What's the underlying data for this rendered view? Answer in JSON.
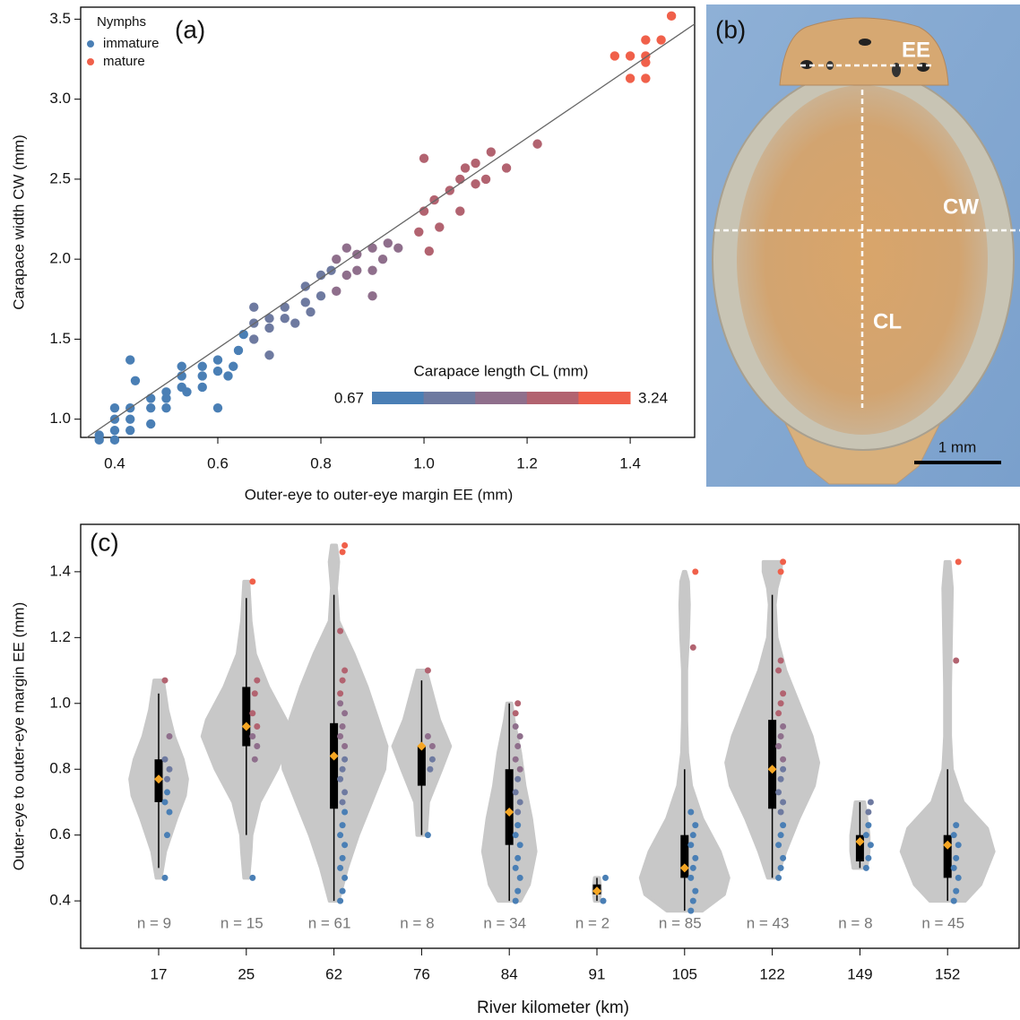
{
  "chart_data": [
    {
      "type": "scatter",
      "panel_label": "(a)",
      "xlabel": "Outer-eye to outer-eye margin EE (mm)",
      "ylabel": "Carapace width CW (mm)",
      "xlim": [
        0.334,
        1.525
      ],
      "xticks": [
        0.4,
        0.6,
        0.8,
        {
          "value": 1,
          "label": "1.0"
        },
        1.2,
        1.4
      ],
      "ylim": [
        0.886,
        3.575
      ],
      "yticks": [
        {
          "value": 1,
          "label": "1.0"
        },
        1.5,
        {
          "value": 2,
          "label": "2.0"
        },
        2.5,
        {
          "value": 3,
          "label": "3.0"
        },
        3.5
      ],
      "legend_title": "Nymphs",
      "legend": [
        {
          "name": "immature",
          "color": "#4a7fb5"
        },
        {
          "name": "mature",
          "color": "#f0604a"
        }
      ],
      "colorbar": {
        "title": "Carapace length CL (mm)",
        "min": 0.67,
        "max": 3.24,
        "colors": [
          "#4a7fb5",
          "#6e7aa0",
          "#8f6f8c",
          "#b26370",
          "#f0604a"
        ]
      },
      "fit_line": {
        "x": [
          0.346,
          1.525
        ],
        "y": [
          0.886,
          3.47
        ],
        "color": "#666666"
      },
      "series": [
        {
          "color": "#4a7fb5",
          "x": [
            0.37,
            0.37,
            0.4,
            0.4,
            0.4,
            0.4,
            0.43,
            0.43,
            0.43,
            0.43,
            0.44,
            0.47,
            0.47,
            0.47,
            0.5,
            0.5,
            0.5,
            0.53,
            0.53,
            0.53,
            0.54,
            0.57,
            0.57,
            0.57,
            0.6,
            0.6,
            0.6,
            0.62,
            0.63,
            0.64,
            0.65
          ],
          "y": [
            0.87,
            0.9,
            0.87,
            0.93,
            1.0,
            1.07,
            0.93,
            1.0,
            1.07,
            1.37,
            1.24,
            0.97,
            1.07,
            1.13,
            1.07,
            1.13,
            1.17,
            1.2,
            1.27,
            1.33,
            1.17,
            1.2,
            1.27,
            1.33,
            1.07,
            1.3,
            1.37,
            1.27,
            1.33,
            1.43,
            1.53
          ]
        },
        {
          "color": "#6e7aa0",
          "x": [
            0.67,
            0.67,
            0.67,
            0.7,
            0.7,
            0.7,
            0.73,
            0.73,
            0.75,
            0.77,
            0.77,
            0.78,
            0.8,
            0.8,
            0.82
          ],
          "y": [
            1.5,
            1.6,
            1.7,
            1.4,
            1.57,
            1.63,
            1.63,
            1.7,
            1.6,
            1.73,
            1.83,
            1.67,
            1.77,
            1.9,
            1.93
          ]
        },
        {
          "color": "#8f6f8c",
          "x": [
            0.83,
            0.83,
            0.85,
            0.85,
            0.87,
            0.87,
            0.9,
            0.9,
            0.9,
            0.92,
            0.93,
            0.95
          ],
          "y": [
            1.8,
            2.0,
            1.9,
            2.07,
            1.93,
            2.03,
            1.93,
            2.07,
            1.77,
            2.0,
            2.1,
            2.07
          ]
        },
        {
          "color": "#b26370",
          "x": [
            0.99,
            1.0,
            1.0,
            1.01,
            1.02,
            1.03,
            1.05,
            1.07,
            1.07,
            1.08,
            1.1,
            1.1,
            1.12,
            1.13,
            1.16,
            1.22
          ],
          "y": [
            2.17,
            2.3,
            2.63,
            2.05,
            2.37,
            2.2,
            2.43,
            2.3,
            2.5,
            2.57,
            2.47,
            2.6,
            2.5,
            2.67,
            2.57,
            2.72
          ]
        },
        {
          "color": "#f0604a",
          "x": [
            1.37,
            1.4,
            1.4,
            1.43,
            1.43,
            1.43,
            1.43,
            1.46,
            1.48
          ],
          "y": [
            3.27,
            3.27,
            3.13,
            3.27,
            3.37,
            3.13,
            3.23,
            3.37,
            3.52
          ]
        }
      ]
    },
    {
      "type": "violin",
      "panel_label": "(c)",
      "xlabel": "River kilometer (km)",
      "ylabel": "Outer-eye to outer-eye margin EE (mm)",
      "ylim": [
        0.256,
        1.544
      ],
      "yticks": [
        0.4,
        0.6,
        0.8,
        {
          "value": 1,
          "label": "1.0"
        },
        1.2,
        1.4
      ],
      "violin_color": "#c8c8c8",
      "box_color": "#000000",
      "mean_color": "#f5a623",
      "groups": [
        {
          "category": 17,
          "n_label": "n = 9",
          "whisker": [
            0.5,
            1.03
          ],
          "box": [
            0.7,
            0.83
          ],
          "mean": 0.77,
          "violin": {
            "y": [
              0.47,
              0.55,
              0.65,
              0.72,
              0.77,
              0.83,
              0.9,
              0.98,
              1.07
            ],
            "width": [
              0.05,
              0.15,
              0.4,
              0.6,
              0.65,
              0.55,
              0.35,
              0.2,
              0.1
            ]
          },
          "points": [
            {
              "color": "#4a7fb5",
              "values": [
                0.47,
                0.6,
                0.67,
                0.7,
                0.73
              ]
            },
            {
              "color": "#6e7aa0",
              "values": [
                0.77,
                0.8,
                0.83
              ]
            },
            {
              "color": "#8f6f8c",
              "values": [
                0.9
              ]
            },
            {
              "color": "#b26370",
              "values": [
                1.07
              ]
            }
          ]
        },
        {
          "category": 25,
          "n_label": "n = 15",
          "whisker": [
            0.6,
            1.32
          ],
          "box": [
            0.87,
            1.05
          ],
          "mean": 0.93,
          "violin": {
            "y": [
              0.47,
              0.55,
              0.6,
              0.7,
              0.8,
              0.9,
              0.95,
              1.05,
              1.15,
              1.25,
              1.37
            ],
            "width": [
              0.05,
              0.1,
              0.12,
              0.3,
              0.7,
              1.0,
              0.9,
              0.5,
              0.2,
              0.1,
              0.05
            ]
          },
          "points": [
            {
              "color": "#4a7fb5",
              "values": [
                0.47
              ]
            },
            {
              "color": "#8f6f8c",
              "values": [
                0.83,
                0.87,
                0.9
              ]
            },
            {
              "color": "#b26370",
              "values": [
                0.93,
                0.97,
                1.03,
                1.07
              ]
            },
            {
              "color": "#f0604a",
              "values": [
                1.37
              ]
            }
          ]
        },
        {
          "category": 62,
          "n_label": "n = 61",
          "whisker": [
            0.4,
            1.33
          ],
          "box": [
            0.68,
            0.94
          ],
          "mean": 0.84,
          "violin": {
            "y": [
              0.4,
              0.5,
              0.6,
              0.7,
              0.8,
              0.87,
              0.95,
              1.05,
              1.15,
              1.25,
              1.35,
              1.43,
              1.48
            ],
            "width": [
              0.1,
              0.3,
              0.55,
              0.85,
              1.15,
              1.2,
              1.0,
              0.75,
              0.45,
              0.1,
              0.05,
              0.1,
              0.05
            ]
          },
          "points": [
            {
              "color": "#4a7fb5",
              "values": [
                0.4,
                0.43,
                0.47,
                0.5,
                0.53,
                0.57,
                0.6,
                0.63,
                0.67
              ]
            },
            {
              "color": "#6e7aa0",
              "values": [
                0.7,
                0.73,
                0.77,
                0.8,
                0.83
              ]
            },
            {
              "color": "#8f6f8c",
              "values": [
                0.87,
                0.9,
                0.93,
                0.97,
                1.0
              ]
            },
            {
              "color": "#b26370",
              "values": [
                1.03,
                1.07,
                1.1,
                1.22
              ]
            },
            {
              "color": "#f0604a",
              "values": [
                1.46,
                1.48
              ]
            }
          ]
        },
        {
          "category": 76,
          "n_label": "n = 8",
          "whisker": [
            0.6,
            1.07
          ],
          "box": [
            0.75,
            0.87
          ],
          "mean": 0.87,
          "violin": {
            "y": [
              0.6,
              0.7,
              0.8,
              0.87,
              0.95,
              1.05,
              1.1
            ],
            "width": [
              0.1,
              0.15,
              0.45,
              0.65,
              0.4,
              0.2,
              0.1
            ]
          },
          "points": [
            {
              "color": "#4a7fb5",
              "values": [
                0.6
              ]
            },
            {
              "color": "#6e7aa0",
              "values": [
                0.8,
                0.83
              ]
            },
            {
              "color": "#8f6f8c",
              "values": [
                0.87,
                0.9
              ]
            },
            {
              "color": "#b26370",
              "values": [
                1.1
              ]
            }
          ]
        },
        {
          "category": 84,
          "n_label": "n = 34",
          "whisker": [
            0.4,
            1.0
          ],
          "box": [
            0.57,
            0.8
          ],
          "mean": 0.67,
          "violin": {
            "y": [
              0.4,
              0.45,
              0.55,
              0.65,
              0.75,
              0.85,
              0.95,
              1.0
            ],
            "width": [
              0.25,
              0.45,
              0.6,
              0.5,
              0.35,
              0.25,
              0.1,
              0.05
            ]
          },
          "points": [
            {
              "color": "#4a7fb5",
              "values": [
                0.4,
                0.43,
                0.47,
                0.5,
                0.53,
                0.57,
                0.6,
                0.63
              ]
            },
            {
              "color": "#6e7aa0",
              "values": [
                0.67,
                0.7,
                0.73,
                0.77
              ]
            },
            {
              "color": "#8f6f8c",
              "values": [
                0.8,
                0.83,
                0.87,
                0.9,
                0.93
              ]
            },
            {
              "color": "#b26370",
              "values": [
                0.97,
                1.0
              ]
            }
          ]
        },
        {
          "category": 91,
          "n_label": "n = 2",
          "whisker": [
            0.4,
            0.47
          ],
          "box": [
            0.42,
            0.45
          ],
          "mean": 0.43,
          "violin": {
            "y": [
              0.4,
              0.43,
              0.47
            ],
            "width": [
              0.05,
              0.08,
              0.05
            ]
          },
          "points": [
            {
              "color": "#4a7fb5",
              "values": [
                0.4,
                0.47
              ]
            }
          ]
        },
        {
          "category": 105,
          "n_label": "n = 85",
          "whisker": [
            0.37,
            0.8
          ],
          "box": [
            0.47,
            0.6
          ],
          "mean": 0.5,
          "violin": {
            "y": [
              0.37,
              0.42,
              0.47,
              0.55,
              0.65,
              0.75,
              0.85,
              0.95,
              1.1,
              1.2,
              1.3,
              1.37,
              1.4
            ],
            "width": [
              0.4,
              0.9,
              1.0,
              0.8,
              0.4,
              0.15,
              0.06,
              0.04,
              0.04,
              0.08,
              0.1,
              0.08,
              0.02
            ]
          },
          "points": [
            {
              "color": "#4a7fb5",
              "values": [
                0.37,
                0.4,
                0.43,
                0.47,
                0.5,
                0.53,
                0.57,
                0.6,
                0.63,
                0.67
              ]
            },
            {
              "color": "#b26370",
              "values": [
                1.17
              ]
            },
            {
              "color": "#f0604a",
              "values": [
                1.4
              ]
            }
          ]
        },
        {
          "category": 122,
          "n_label": "n = 43",
          "whisker": [
            0.47,
            1.33
          ],
          "box": [
            0.68,
            0.95
          ],
          "mean": 0.8,
          "violin": {
            "y": [
              0.47,
              0.55,
              0.65,
              0.75,
              0.82,
              0.9,
              1.0,
              1.1,
              1.2,
              1.3,
              1.35,
              1.4,
              1.43
            ],
            "width": [
              0.1,
              0.3,
              0.6,
              0.95,
              1.05,
              0.9,
              0.6,
              0.3,
              0.1,
              0.06,
              0.1,
              0.2,
              0.2
            ]
          },
          "points": [
            {
              "color": "#4a7fb5",
              "values": [
                0.47,
                0.5,
                0.53,
                0.57,
                0.6,
                0.63
              ]
            },
            {
              "color": "#6e7aa0",
              "values": [
                0.67,
                0.7,
                0.73,
                0.77,
                0.8
              ]
            },
            {
              "color": "#8f6f8c",
              "values": [
                0.83,
                0.87,
                0.9,
                0.93
              ]
            },
            {
              "color": "#b26370",
              "values": [
                0.97,
                1.0,
                1.03,
                1.1,
                1.13
              ]
            },
            {
              "color": "#f0604a",
              "values": [
                1.4,
                1.43
              ]
            }
          ]
        },
        {
          "category": 149,
          "n_label": "n = 8",
          "whisker": [
            0.5,
            0.7
          ],
          "box": [
            0.52,
            0.6
          ],
          "mean": 0.58,
          "violin": {
            "y": [
              0.5,
              0.55,
              0.6,
              0.65,
              0.7
            ],
            "width": [
              0.15,
              0.2,
              0.2,
              0.15,
              0.1
            ]
          },
          "points": [
            {
              "color": "#4a7fb5",
              "values": [
                0.5,
                0.53,
                0.57,
                0.6,
                0.63
              ]
            },
            {
              "color": "#6e7aa0",
              "values": [
                0.67,
                0.7
              ]
            }
          ]
        },
        {
          "category": 152,
          "n_label": "n = 45",
          "whisker": [
            0.4,
            0.8
          ],
          "box": [
            0.47,
            0.6
          ],
          "mean": 0.57,
          "violin": {
            "y": [
              0.4,
              0.45,
              0.55,
              0.62,
              0.7,
              0.8,
              0.9,
              1.05,
              1.2,
              1.35,
              1.43
            ],
            "width": [
              0.4,
              0.75,
              1.05,
              0.9,
              0.35,
              0.1,
              0.06,
              0.06,
              0.08,
              0.1,
              0.05
            ]
          },
          "points": [
            {
              "color": "#4a7fb5",
              "values": [
                0.4,
                0.43,
                0.47,
                0.5,
                0.53,
                0.57,
                0.6,
                0.63
              ]
            },
            {
              "color": "#b26370",
              "values": [
                1.13
              ]
            },
            {
              "color": "#f0604a",
              "values": [
                1.43
              ]
            }
          ]
        }
      ]
    }
  ],
  "image_panel": {
    "panel_label": "(b)",
    "labels": [
      "EE",
      "CW",
      "CL"
    ],
    "scale_bar": "1 mm"
  }
}
